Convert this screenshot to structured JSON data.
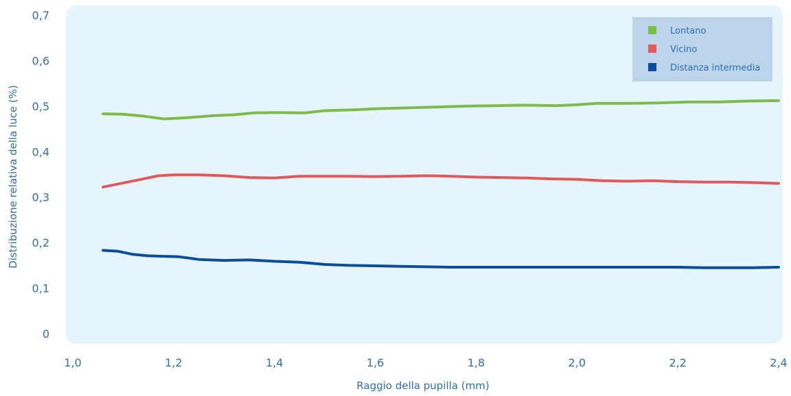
{
  "chart_data": {
    "type": "line",
    "xlabel": "Raggio della pupilla (mm)",
    "ylabel": "Distribuzione relativa della luce (%)",
    "x_ticks": [
      "1,0",
      "1,2",
      "1,4",
      "1,6",
      "1,8",
      "2,0",
      "2,2",
      "2,4"
    ],
    "y_ticks": [
      "0",
      "0,1",
      "0,2",
      "0,3",
      "0,4",
      "0,5",
      "0,6",
      "0,7"
    ],
    "xlim": [
      1.0,
      2.4
    ],
    "ylim": [
      0,
      0.7
    ],
    "grid": false,
    "legend_position": "top-right",
    "background_color": "#e6f4fb",
    "series": [
      {
        "name": "Lontano",
        "color": "#7dbb4a",
        "x": [
          1.06,
          1.1,
          1.14,
          1.18,
          1.22,
          1.28,
          1.32,
          1.36,
          1.4,
          1.46,
          1.5,
          1.56,
          1.6,
          1.66,
          1.72,
          1.78,
          1.84,
          1.9,
          1.96,
          2.0,
          2.04,
          2.1,
          2.16,
          2.22,
          2.28,
          2.34,
          2.4
        ],
        "y": [
          0.483,
          0.482,
          0.478,
          0.472,
          0.474,
          0.479,
          0.481,
          0.485,
          0.486,
          0.485,
          0.49,
          0.492,
          0.494,
          0.496,
          0.498,
          0.5,
          0.501,
          0.502,
          0.501,
          0.503,
          0.506,
          0.506,
          0.507,
          0.509,
          0.509,
          0.511,
          0.512
        ]
      },
      {
        "name": "Vicino",
        "color": "#e05a5b",
        "x": [
          1.06,
          1.1,
          1.14,
          1.17,
          1.2,
          1.25,
          1.3,
          1.35,
          1.4,
          1.45,
          1.5,
          1.55,
          1.6,
          1.65,
          1.7,
          1.75,
          1.8,
          1.85,
          1.9,
          1.95,
          2.0,
          2.05,
          2.1,
          2.15,
          2.2,
          2.25,
          2.3,
          2.35,
          2.4
        ],
        "y": [
          0.322,
          0.331,
          0.34,
          0.347,
          0.349,
          0.349,
          0.347,
          0.343,
          0.342,
          0.346,
          0.346,
          0.346,
          0.345,
          0.346,
          0.347,
          0.346,
          0.344,
          0.343,
          0.342,
          0.34,
          0.339,
          0.336,
          0.335,
          0.336,
          0.334,
          0.333,
          0.333,
          0.332,
          0.33
        ]
      },
      {
        "name": "Distanza intermedia",
        "color": "#0a4d9c",
        "x": [
          1.06,
          1.09,
          1.12,
          1.15,
          1.18,
          1.21,
          1.25,
          1.3,
          1.35,
          1.4,
          1.45,
          1.5,
          1.55,
          1.6,
          1.65,
          1.7,
          1.75,
          1.8,
          1.85,
          1.9,
          1.95,
          2.0,
          2.05,
          2.1,
          2.15,
          2.2,
          2.25,
          2.3,
          2.35,
          2.4
        ],
        "y": [
          0.183,
          0.181,
          0.174,
          0.171,
          0.17,
          0.169,
          0.163,
          0.161,
          0.162,
          0.159,
          0.157,
          0.152,
          0.15,
          0.149,
          0.148,
          0.147,
          0.146,
          0.146,
          0.146,
          0.146,
          0.146,
          0.146,
          0.146,
          0.146,
          0.146,
          0.146,
          0.145,
          0.145,
          0.145,
          0.146
        ]
      }
    ]
  }
}
